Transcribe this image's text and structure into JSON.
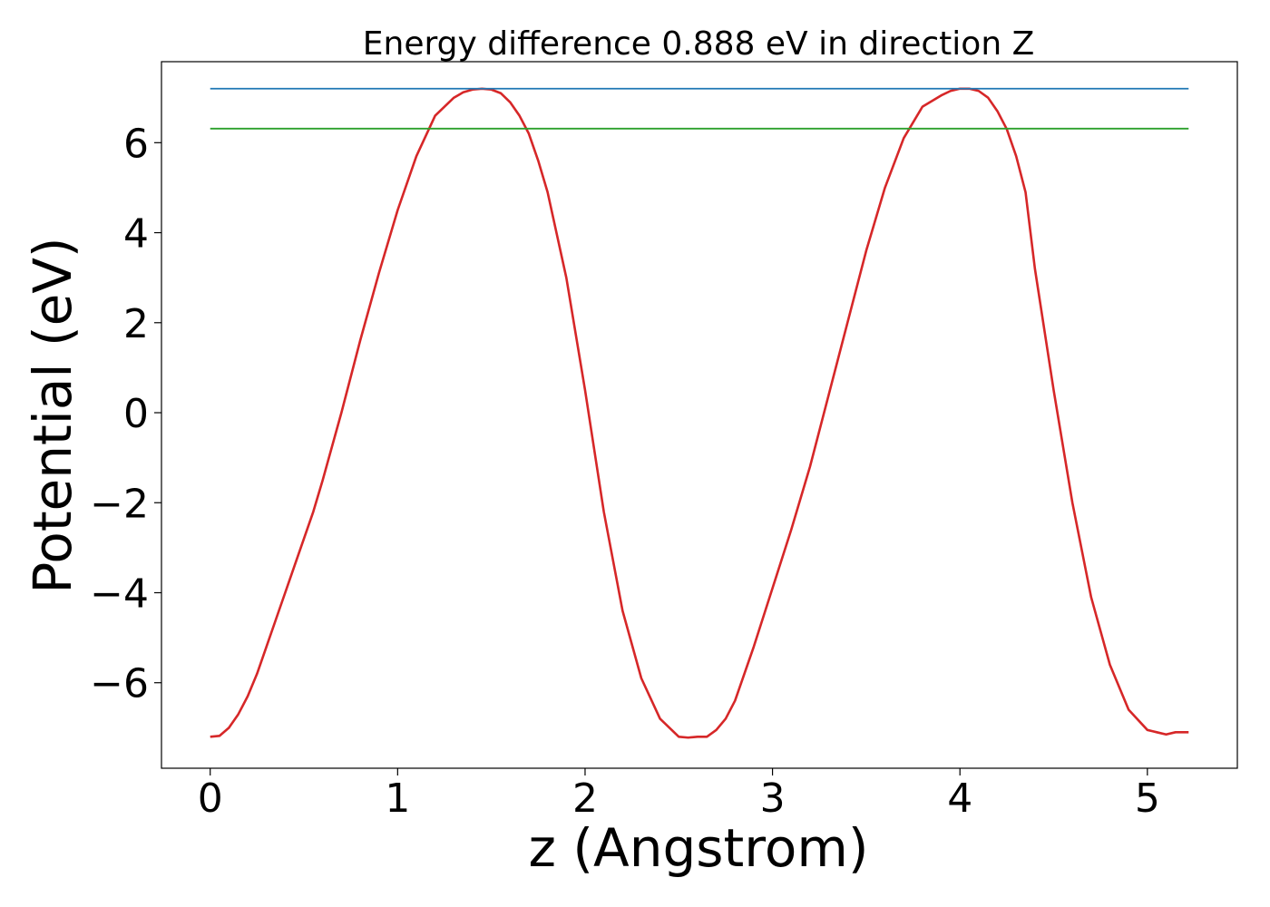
{
  "chart_data": {
    "type": "line",
    "title": "Energy difference 0.888 eV in direction Z",
    "xlabel": "z (Angstrom)",
    "ylabel": "Potential (eV)",
    "xlim": [
      -0.26,
      5.48
    ],
    "ylim": [
      -7.9,
      7.8
    ],
    "xticks": [
      0,
      1,
      2,
      3,
      4,
      5
    ],
    "yticks": [
      -6,
      -4,
      -2,
      0,
      2,
      4,
      6
    ],
    "xtick_labels": [
      "0",
      "1",
      "2",
      "3",
      "4",
      "5"
    ],
    "ytick_labels": [
      "−6",
      "−4",
      "−2",
      "0",
      "2",
      "4",
      "6"
    ],
    "grid": false,
    "legend": "none",
    "series": [
      {
        "color": "#d62728",
        "x": [
          0.0,
          0.05,
          0.1,
          0.15,
          0.2,
          0.25,
          0.3,
          0.35,
          0.4,
          0.45,
          0.5,
          0.55,
          0.6,
          0.7,
          0.8,
          0.9,
          1.0,
          1.1,
          1.2,
          1.3,
          1.35,
          1.4,
          1.45,
          1.5,
          1.55,
          1.6,
          1.65,
          1.7,
          1.75,
          1.8,
          1.9,
          2.0,
          2.1,
          2.2,
          2.3,
          2.4,
          2.5,
          2.55,
          2.6,
          2.65,
          2.7,
          2.75,
          2.8,
          2.85,
          2.9,
          3.0,
          3.1,
          3.2,
          3.3,
          3.4,
          3.5,
          3.6,
          3.7,
          3.8,
          3.9,
          3.95,
          4.0,
          4.05,
          4.1,
          4.15,
          4.2,
          4.25,
          4.3,
          4.35,
          4.4,
          4.5,
          4.6,
          4.7,
          4.8,
          4.9,
          5.0,
          5.05,
          5.1,
          5.15,
          5.2,
          5.22
        ],
        "y": [
          -7.2,
          -7.18,
          -7.0,
          -6.7,
          -6.3,
          -5.8,
          -5.2,
          -4.6,
          -4.0,
          -3.4,
          -2.8,
          -2.2,
          -1.5,
          0.0,
          1.6,
          3.1,
          4.5,
          5.7,
          6.6,
          7.0,
          7.12,
          7.18,
          7.2,
          7.18,
          7.1,
          6.9,
          6.6,
          6.2,
          5.6,
          4.9,
          3.0,
          0.5,
          -2.2,
          -4.4,
          -5.9,
          -6.8,
          -7.2,
          -7.22,
          -7.2,
          -7.2,
          -7.05,
          -6.8,
          -6.4,
          -5.8,
          -5.2,
          -3.9,
          -2.6,
          -1.2,
          0.4,
          2.0,
          3.6,
          5.0,
          6.1,
          6.8,
          7.05,
          7.15,
          7.2,
          7.2,
          7.15,
          7.0,
          6.7,
          6.3,
          5.7,
          4.9,
          3.2,
          0.5,
          -2.0,
          -4.1,
          -5.6,
          -6.6,
          -7.05,
          -7.1,
          -7.15,
          -7.1,
          -7.1,
          -7.1
        ]
      },
      {
        "color": "#1f77b4",
        "x": [
          0.0,
          5.22
        ],
        "y": [
          7.2,
          7.2
        ]
      },
      {
        "color": "#2ca02c",
        "x": [
          0.0,
          5.22
        ],
        "y": [
          6.312,
          6.312
        ]
      }
    ]
  }
}
